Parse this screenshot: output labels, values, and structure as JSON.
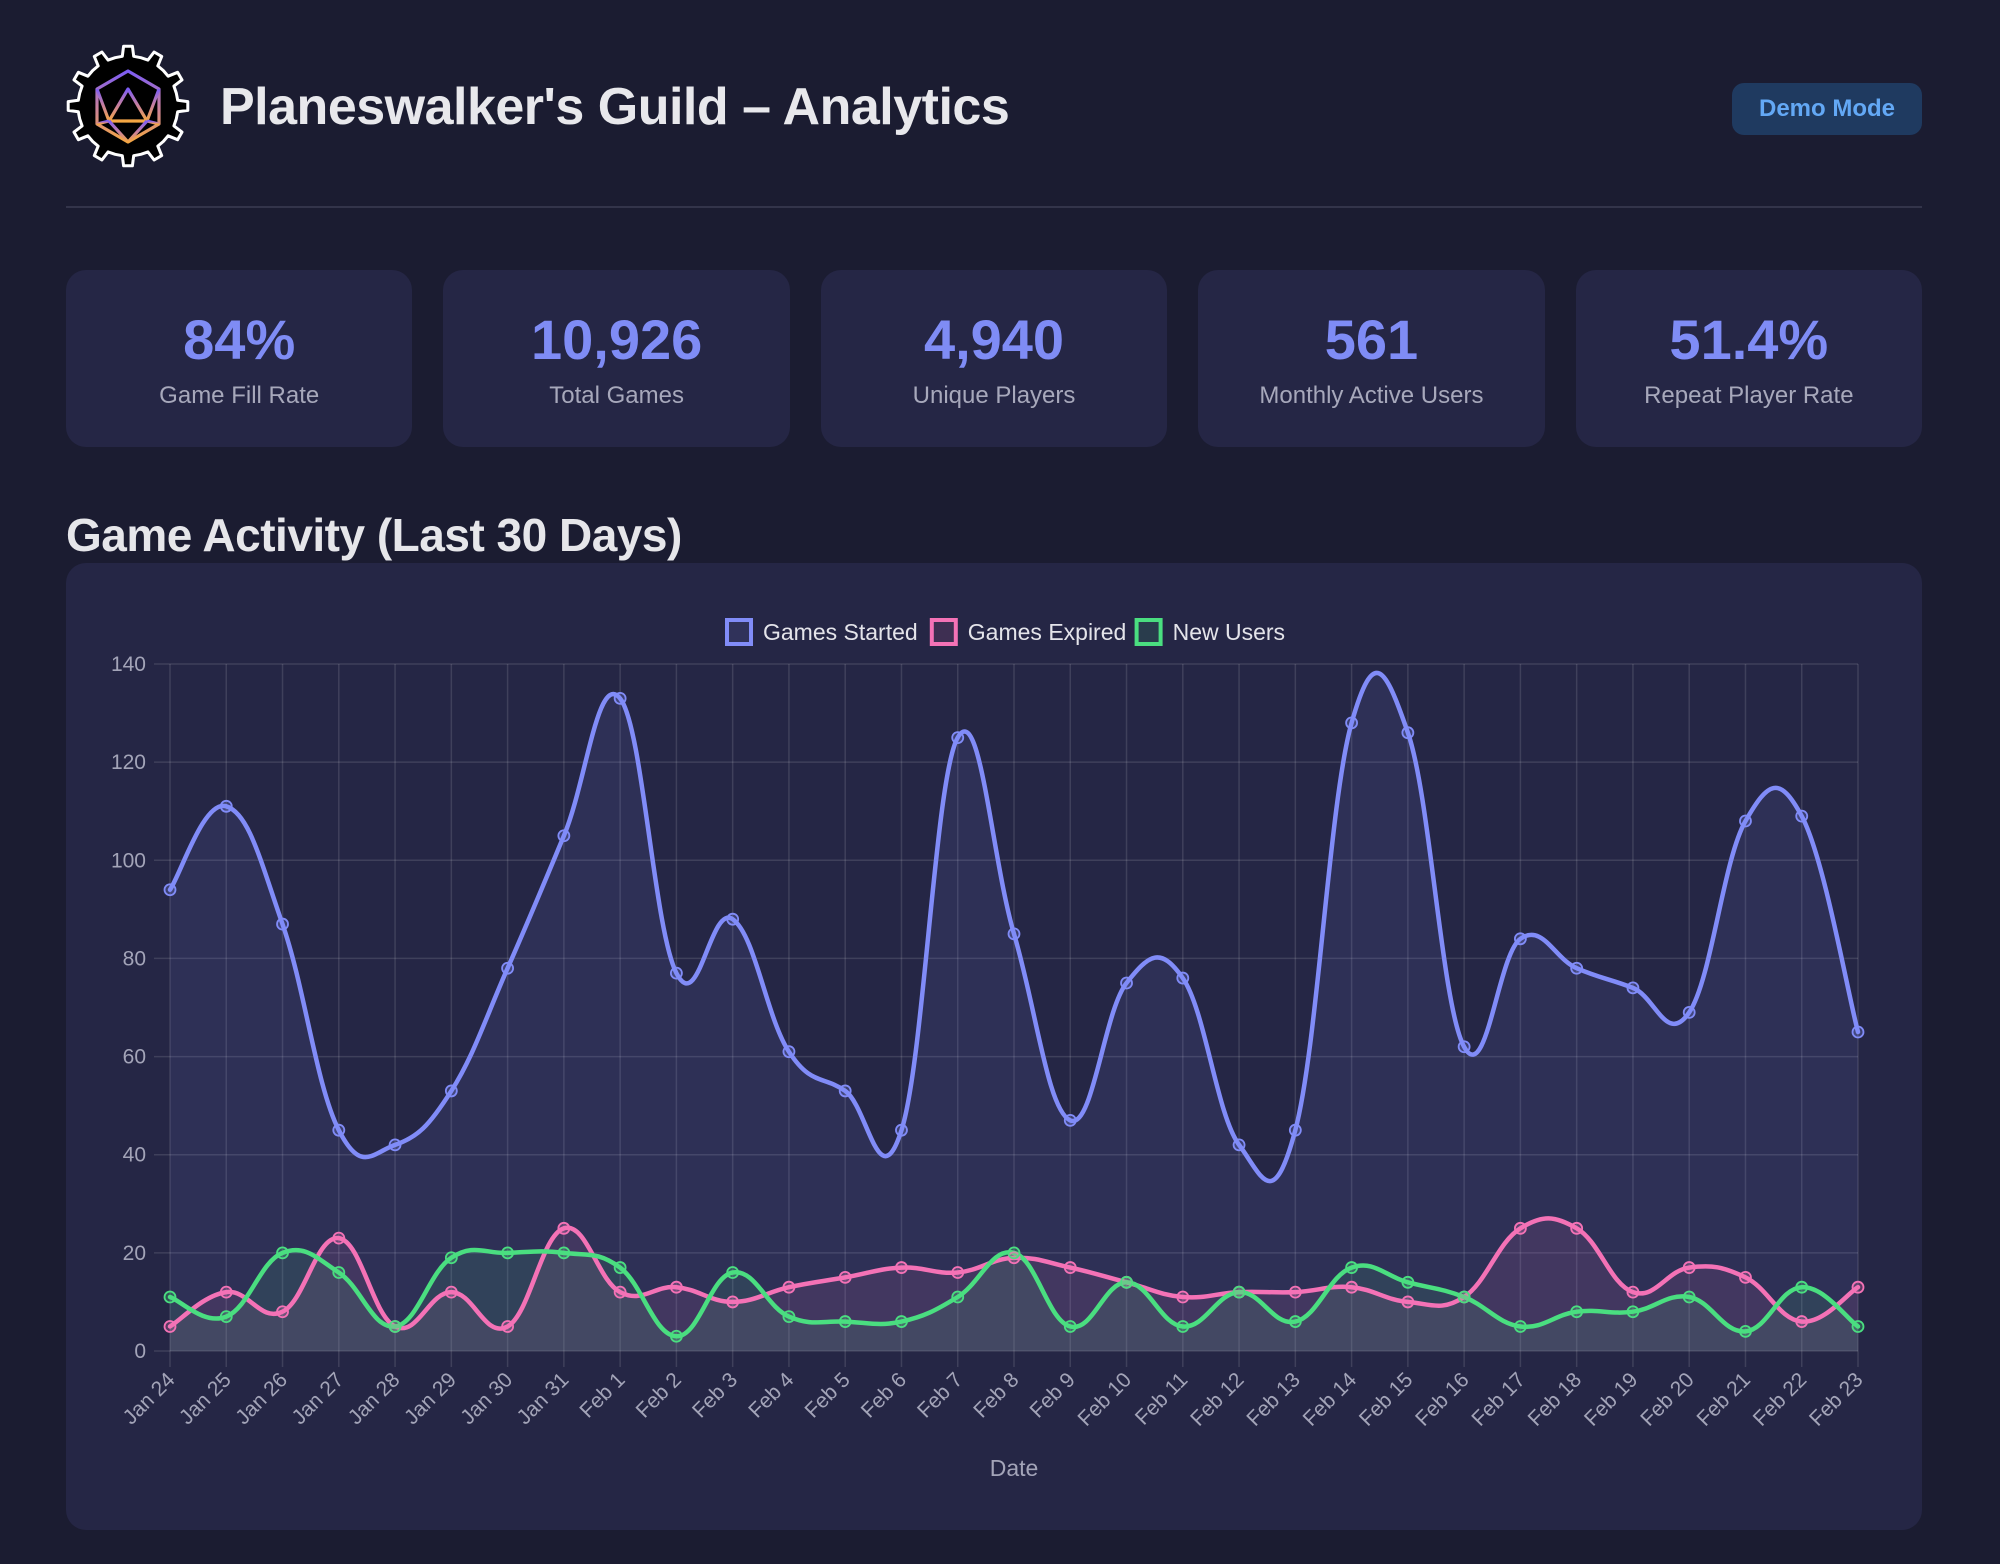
{
  "header": {
    "title": "Planeswalker's Guild – Analytics",
    "logo_icon": "d20-gear-icon",
    "demo_button": "Demo Mode"
  },
  "stats": [
    {
      "value": "84%",
      "label": "Game Fill Rate"
    },
    {
      "value": "10,926",
      "label": "Total Games"
    },
    {
      "value": "4,940",
      "label": "Unique Players"
    },
    {
      "value": "561",
      "label": "Monthly Active Users"
    },
    {
      "value": "51.4%",
      "label": "Repeat Player Rate"
    }
  ],
  "section": {
    "title": "Game Activity (Last 30 Days)"
  },
  "colors": {
    "accent": "#7f8cf5",
    "games_started": "#818cf8",
    "games_expired": "#f472b6",
    "new_users": "#4ade80"
  },
  "chart_data": {
    "type": "line",
    "title": "",
    "xlabel": "Date",
    "ylabel": "",
    "ylim": [
      0,
      140
    ],
    "yticks": [
      0,
      20,
      40,
      60,
      80,
      100,
      120,
      140
    ],
    "grid": true,
    "legend_position": "top-center",
    "categories": [
      "Jan 24",
      "Jan 25",
      "Jan 26",
      "Jan 27",
      "Jan 28",
      "Jan 29",
      "Jan 30",
      "Jan 31",
      "Feb 1",
      "Feb 2",
      "Feb 3",
      "Feb 4",
      "Feb 5",
      "Feb 6",
      "Feb 7",
      "Feb 8",
      "Feb 9",
      "Feb 10",
      "Feb 11",
      "Feb 12",
      "Feb 13",
      "Feb 14",
      "Feb 15",
      "Feb 16",
      "Feb 17",
      "Feb 18",
      "Feb 19",
      "Feb 20",
      "Feb 21",
      "Feb 22",
      "Feb 23"
    ],
    "series": [
      {
        "name": "Games Started",
        "color": "#818cf8",
        "fill": true,
        "values": [
          94,
          111,
          87,
          45,
          42,
          53,
          78,
          105,
          133,
          77,
          88,
          61,
          53,
          45,
          125,
          85,
          47,
          75,
          76,
          42,
          45,
          128,
          126,
          62,
          84,
          78,
          74,
          69,
          108,
          109,
          65
        ]
      },
      {
        "name": "Games Expired",
        "color": "#f472b6",
        "fill": true,
        "values": [
          5,
          12,
          8,
          23,
          5,
          12,
          5,
          25,
          12,
          13,
          10,
          13,
          15,
          17,
          16,
          19,
          17,
          14,
          11,
          12,
          12,
          13,
          10,
          11,
          25,
          25,
          12,
          17,
          15,
          6,
          13
        ]
      },
      {
        "name": "New Users",
        "color": "#4ade80",
        "fill": true,
        "values": [
          11,
          7,
          20,
          16,
          5,
          19,
          20,
          20,
          17,
          3,
          16,
          7,
          6,
          6,
          11,
          20,
          5,
          14,
          5,
          12,
          6,
          17,
          14,
          11,
          5,
          8,
          8,
          11,
          4,
          13,
          5
        ]
      }
    ]
  }
}
